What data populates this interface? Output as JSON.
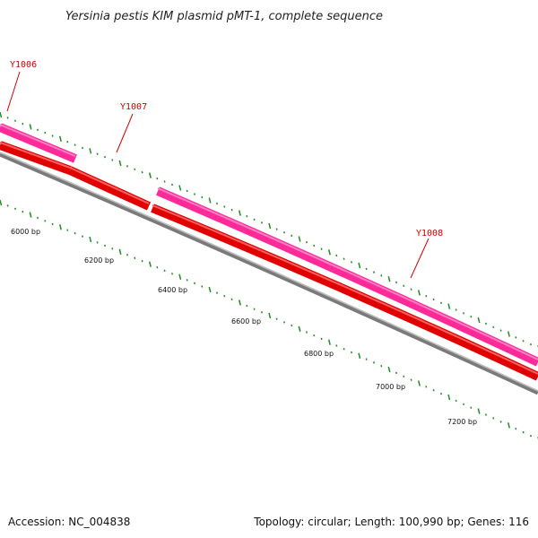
{
  "title": "Yersinia pestis KIM plasmid pMT-1, complete sequence",
  "footer": {
    "accession": "Accession: NC_004838",
    "summary": "Topology: circular; Length: 100,990 bp; Genes: 116"
  },
  "colors": {
    "backbone": "#808080",
    "forward_strand_gene": "#ff3399",
    "reverse_strand_gene": "#ff0000",
    "tick": "#228b22",
    "label": "#d40000"
  },
  "scale_labels": [
    "6000 bp",
    "6200 bp",
    "6400 bp",
    "6600 bp",
    "6800 bp",
    "7000 bp",
    "7200 bp"
  ],
  "genes": [
    {
      "name": "Y1006",
      "strand": "forward"
    },
    {
      "name": "Y1007",
      "strand": "reverse"
    },
    {
      "name": "Y1008",
      "strand": "forward"
    }
  ]
}
